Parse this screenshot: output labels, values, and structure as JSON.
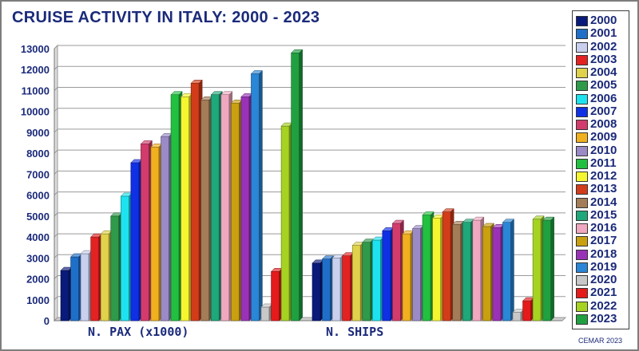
{
  "chart_data": {
    "type": "bar",
    "title": "CRUISE ACTIVITY IN ITALY:  2000 - 2023",
    "categories": [
      "N. PAX (x1000)",
      "N. SHIPS"
    ],
    "ylim": [
      0,
      13000
    ],
    "yticks": [
      "0",
      "1000",
      "2000",
      "3000",
      "4000",
      "5000",
      "6000",
      "7000",
      "8000",
      "9000",
      "10000",
      "11000",
      "12000",
      "13000"
    ],
    "legend_position": "right",
    "series": [
      {
        "name": "2000",
        "color": "#0a1a7a",
        "values": [
          2400,
          2750
        ]
      },
      {
        "name": "2001",
        "color": "#1f6fc9",
        "values": [
          3050,
          2950
        ]
      },
      {
        "name": "2002",
        "color": "#c8d0ee",
        "values": [
          3200,
          3000
        ]
      },
      {
        "name": "2003",
        "color": "#e32222",
        "values": [
          4000,
          3100
        ]
      },
      {
        "name": "2004",
        "color": "#e0d24a",
        "values": [
          4150,
          3600
        ]
      },
      {
        "name": "2005",
        "color": "#2e9a4a",
        "values": [
          5000,
          3750
        ]
      },
      {
        "name": "2006",
        "color": "#1ee3ef",
        "values": [
          5950,
          3850
        ]
      },
      {
        "name": "2007",
        "color": "#1030e6",
        "values": [
          7550,
          4300
        ]
      },
      {
        "name": "2008",
        "color": "#d23c6c",
        "values": [
          8450,
          4650
        ]
      },
      {
        "name": "2009",
        "color": "#f0b020",
        "values": [
          8300,
          4150
        ]
      },
      {
        "name": "2010",
        "color": "#9a8ac6",
        "values": [
          8800,
          4400
        ]
      },
      {
        "name": "2011",
        "color": "#22c040",
        "values": [
          10800,
          5050
        ]
      },
      {
        "name": "2012",
        "color": "#f5f530",
        "values": [
          10700,
          4900
        ]
      },
      {
        "name": "2013",
        "color": "#d33c1a",
        "values": [
          11350,
          5200
        ]
      },
      {
        "name": "2014",
        "color": "#a37c58",
        "values": [
          10550,
          4600
        ]
      },
      {
        "name": "2015",
        "color": "#1fa87a",
        "values": [
          10800,
          4700
        ]
      },
      {
        "name": "2016",
        "color": "#f0a8c0",
        "values": [
          10800,
          4800
        ]
      },
      {
        "name": "2017",
        "color": "#c8a010",
        "values": [
          10400,
          4500
        ]
      },
      {
        "name": "2018",
        "color": "#9a32b8",
        "values": [
          10700,
          4450
        ]
      },
      {
        "name": "2019",
        "color": "#2a86d6",
        "values": [
          11800,
          4700
        ]
      },
      {
        "name": "2020",
        "color": "#c8c8c8",
        "values": [
          650,
          400
        ]
      },
      {
        "name": "2021",
        "color": "#e51a1a",
        "values": [
          2350,
          950
        ]
      },
      {
        "name": "2022",
        "color": "#a6d222",
        "values": [
          9300,
          4850
        ]
      },
      {
        "name": "2023",
        "color": "#20a040",
        "values": [
          12800,
          4800
        ]
      }
    ]
  },
  "credit": "CEMAR 2023"
}
